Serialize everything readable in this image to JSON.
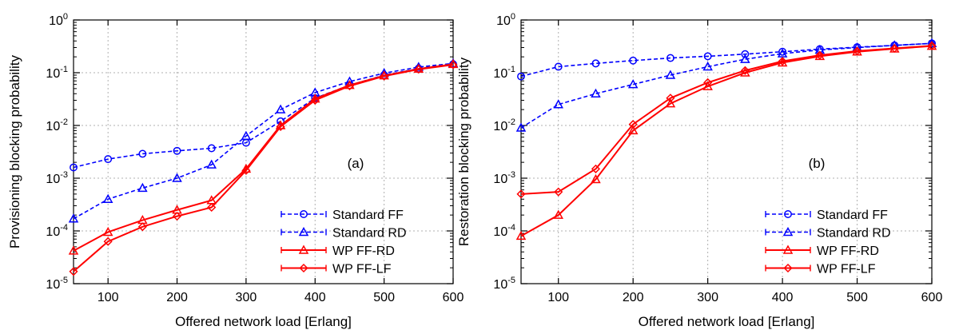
{
  "chart_data": [
    {
      "type": "line",
      "panel_label": "(a)",
      "xlabel": "Offered network load [Erlang]",
      "ylabel": "Provisioning blocking probability",
      "xlim": [
        50,
        600
      ],
      "ylim": [
        1e-05,
        1
      ],
      "yscale": "log",
      "xticks": [
        100,
        200,
        300,
        400,
        500,
        600
      ],
      "yticks": [
        1e-05,
        0.0001,
        0.001,
        0.01,
        0.1,
        1
      ],
      "grid": true,
      "legend_position": "bottom-right",
      "x": [
        50,
        100,
        150,
        200,
        250,
        300,
        350,
        400,
        450,
        500,
        550,
        600
      ],
      "series": [
        {
          "name": "Standard FF",
          "color": "#0000ff",
          "style": "dashed",
          "marker": "circle",
          "values": [
            0.0016,
            0.0023,
            0.0029,
            0.0033,
            0.0037,
            0.0047,
            0.012,
            0.033,
            0.058,
            0.09,
            0.12,
            0.145
          ]
        },
        {
          "name": "Standard RD",
          "color": "#0000ff",
          "style": "dashed",
          "marker": "triangle",
          "values": [
            0.00017,
            0.0004,
            0.00065,
            0.001,
            0.0018,
            0.0063,
            0.02,
            0.042,
            0.068,
            0.098,
            0.128,
            0.15
          ]
        },
        {
          "name": "WP FF-RD",
          "color": "#ff0000",
          "style": "solid",
          "marker": "triangle",
          "values": [
            4.2e-05,
            9.5e-05,
            0.00016,
            0.00025,
            0.00038,
            0.0015,
            0.01,
            0.032,
            0.058,
            0.088,
            0.118,
            0.145
          ]
        },
        {
          "name": "WP FF-LF",
          "color": "#ff0000",
          "style": "solid",
          "marker": "diamond",
          "values": [
            1.7e-05,
            6.3e-05,
            0.00012,
            0.00019,
            0.00028,
            0.0014,
            0.0095,
            0.03,
            0.056,
            0.086,
            0.116,
            0.142
          ]
        }
      ]
    },
    {
      "type": "line",
      "panel_label": "(b)",
      "xlabel": "Offered network load [Erlang]",
      "ylabel": "Restoration blocking probability",
      "xlim": [
        50,
        600
      ],
      "ylim": [
        1e-05,
        1
      ],
      "yscale": "log",
      "xticks": [
        100,
        200,
        300,
        400,
        500,
        600
      ],
      "yticks": [
        1e-05,
        0.0001,
        0.001,
        0.01,
        0.1,
        1
      ],
      "grid": true,
      "legend_position": "bottom-right",
      "x": [
        50,
        100,
        150,
        200,
        250,
        300,
        350,
        400,
        450,
        500,
        550,
        600
      ],
      "series": [
        {
          "name": "Standard FF",
          "color": "#0000ff",
          "style": "dashed",
          "marker": "circle",
          "values": [
            0.085,
            0.13,
            0.15,
            0.17,
            0.19,
            0.205,
            0.225,
            0.25,
            0.28,
            0.305,
            0.33,
            0.36
          ]
        },
        {
          "name": "Standard RD",
          "color": "#0000ff",
          "style": "dashed",
          "marker": "triangle",
          "values": [
            0.009,
            0.025,
            0.04,
            0.06,
            0.09,
            0.13,
            0.18,
            0.23,
            0.27,
            0.3,
            0.33,
            0.36
          ]
        },
        {
          "name": "WP FF-RD",
          "color": "#ff0000",
          "style": "solid",
          "marker": "triangle",
          "values": [
            8e-05,
            0.0002,
            0.00095,
            0.008,
            0.026,
            0.055,
            0.1,
            0.155,
            0.205,
            0.25,
            0.285,
            0.32
          ]
        },
        {
          "name": "WP FF-LF",
          "color": "#ff0000",
          "style": "solid",
          "marker": "diamond",
          "values": [
            0.0005,
            0.00055,
            0.0015,
            0.0105,
            0.033,
            0.065,
            0.11,
            0.165,
            0.215,
            0.258,
            0.29,
            0.325
          ]
        }
      ]
    }
  ]
}
